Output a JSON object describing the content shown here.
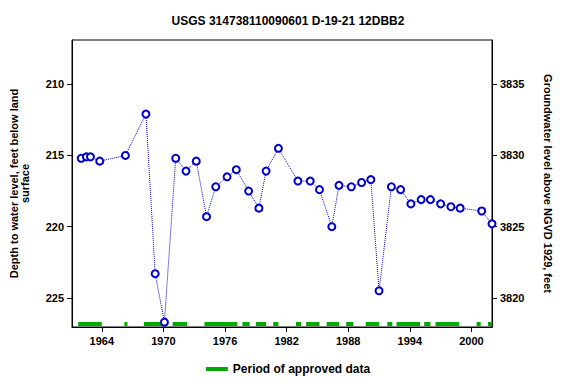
{
  "chart_data": {
    "type": "line",
    "title": "USGS 314738110090601 D-19-21 12DBB2",
    "y_label": "Depth to water level, feet below land\nsurface",
    "y2_label": "Groundwater level above NGVD 1929, feet",
    "x": [
      1962.0,
      1962.5,
      1962.9,
      1963.8,
      1966.3,
      1968.3,
      1969.2,
      1970.1,
      1971.2,
      1972.2,
      1973.2,
      1974.2,
      1975.1,
      1976.2,
      1977.1,
      1978.3,
      1979.3,
      1980.0,
      1981.2,
      1983.1,
      1984.3,
      1985.2,
      1986.4,
      1987.1,
      1988.3,
      1989.3,
      1990.2,
      1991.0,
      1992.2,
      1993.1,
      1994.1,
      1995.1,
      1996.0,
      1997.0,
      1998.0,
      1998.9,
      2001.0,
      2002.0
    ],
    "values": [
      215.2,
      215.1,
      215.1,
      215.4,
      215.0,
      212.1,
      223.3,
      226.7,
      215.2,
      216.1,
      215.4,
      219.3,
      217.2,
      216.5,
      216.0,
      217.5,
      218.7,
      216.1,
      214.5,
      216.8,
      216.8,
      217.4,
      220.0,
      217.1,
      217.2,
      216.9,
      216.7,
      224.5,
      217.2,
      217.4,
      218.4,
      218.1,
      218.1,
      218.4,
      218.6,
      218.7,
      218.9,
      219.8
    ],
    "color": "#0000cc",
    "marker": "circle",
    "line_style": "dotted",
    "xlim": [
      1961.1,
      2002.0
    ],
    "xticks": [
      1964,
      1970,
      1976,
      1982,
      1988,
      1994,
      2000
    ],
    "ylim": [
      206.9,
      227.04
    ],
    "yticks": [
      210,
      215,
      220,
      225
    ],
    "y2lim": [
      3817.96,
      3838.1
    ],
    "y2ticks": [
      3820,
      3825,
      3830,
      3835
    ],
    "grid": false,
    "legend": "bottom",
    "approved_data": {
      "name": "Period of approved data",
      "color": "#00aa00",
      "periods": [
        [
          1961.7,
          1964.0
        ],
        [
          1966.2,
          1966.5
        ],
        [
          1968.1,
          1970.0
        ],
        [
          1970.9,
          1972.3
        ],
        [
          1974.0,
          1977.2
        ],
        [
          1977.7,
          1978.4
        ],
        [
          1979.0,
          1980.0
        ],
        [
          1980.7,
          1981.2
        ],
        [
          1982.9,
          1983.4
        ],
        [
          1983.9,
          1985.2
        ],
        [
          1985.9,
          1987.1
        ],
        [
          1987.8,
          1988.5
        ],
        [
          1989.7,
          1991.0
        ],
        [
          1991.8,
          1992.3
        ],
        [
          1992.7,
          1995.0
        ],
        [
          1995.4,
          1996.0
        ],
        [
          1996.5,
          1998.8
        ],
        [
          2000.5,
          2000.9
        ],
        [
          2001.6,
          2002.0
        ]
      ]
    }
  }
}
